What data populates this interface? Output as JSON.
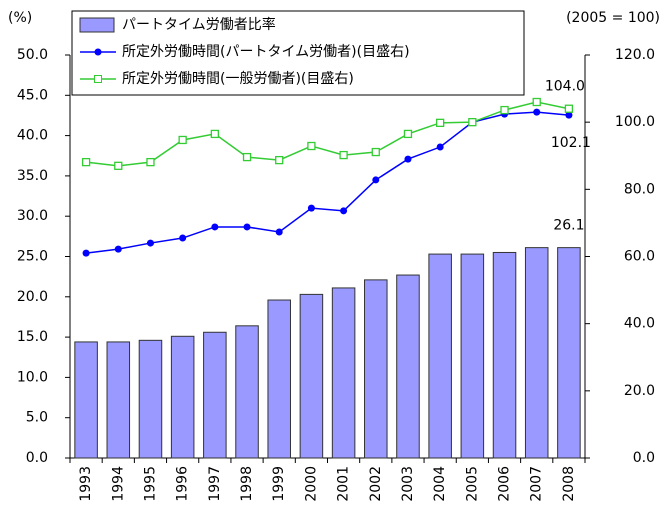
{
  "chart_data": {
    "type": "bar-line",
    "y_label": "(%)",
    "y2_label": "(2005 = 100)",
    "categories": [
      "1993",
      "1994",
      "1995",
      "1996",
      "1997",
      "1998",
      "1999",
      "2000",
      "2001",
      "2002",
      "2003",
      "2004",
      "2005",
      "2006",
      "2007",
      "2008"
    ],
    "series": [
      {
        "name": "パートタイム労働者比率",
        "type": "bar",
        "color": "#9999ff",
        "values": [
          14.4,
          14.4,
          14.6,
          15.1,
          15.6,
          16.4,
          19.6,
          20.3,
          21.1,
          22.1,
          22.7,
          25.3,
          25.3,
          25.5,
          26.1,
          26.1
        ],
        "value_labels": [
          null,
          null,
          null,
          null,
          null,
          null,
          null,
          null,
          null,
          null,
          null,
          null,
          null,
          null,
          null,
          "26.1"
        ]
      },
      {
        "name": "所定外労働時間(パートタイム労働者)(目盛右)",
        "type": "line",
        "marker": "circle",
        "axis": "y2",
        "color": "#0000ff",
        "values": [
          61.0,
          62.2,
          64.0,
          65.5,
          68.8,
          68.8,
          67.3,
          74.4,
          73.6,
          82.8,
          89.0,
          92.6,
          100.0,
          102.4,
          103.0,
          102.1
        ],
        "value_labels": [
          null,
          null,
          null,
          null,
          null,
          null,
          null,
          null,
          null,
          null,
          null,
          null,
          null,
          null,
          null,
          "102.1"
        ]
      },
      {
        "name": "所定外労働時間(一般労働者)(目盛右)",
        "type": "line",
        "marker": "square",
        "axis": "y2",
        "color": "#33cc33",
        "values": [
          88.1,
          87.0,
          88.1,
          94.7,
          96.5,
          89.6,
          88.7,
          92.9,
          90.2,
          91.1,
          96.5,
          99.8,
          100.0,
          103.6,
          106.0,
          104.0
        ],
        "value_labels": [
          null,
          null,
          null,
          null,
          null,
          null,
          null,
          null,
          null,
          null,
          null,
          null,
          null,
          null,
          null,
          "104.0"
        ]
      }
    ],
    "ylim": [
      0,
      50
    ],
    "yticks": [
      {
        "value": 0,
        "label": "0.0"
      },
      {
        "value": 5,
        "label": "5.0"
      },
      {
        "value": 10,
        "label": "10.0"
      },
      {
        "value": 15,
        "label": "15.0"
      },
      {
        "value": 20,
        "label": "20.0"
      },
      {
        "value": 25,
        "label": "25.0"
      },
      {
        "value": 30,
        "label": "30.0"
      },
      {
        "value": 35,
        "label": "35.0"
      },
      {
        "value": 40,
        "label": "40.0"
      },
      {
        "value": 45,
        "label": "45.0"
      },
      {
        "value": 50,
        "label": "50.0"
      }
    ],
    "y2lim": [
      0,
      120
    ],
    "y2ticks": [
      {
        "value": 0,
        "label": "0.0"
      },
      {
        "value": 20,
        "label": "20.0"
      },
      {
        "value": 40,
        "label": "40.0"
      },
      {
        "value": 60,
        "label": "60.0"
      },
      {
        "value": 80,
        "label": "80.0"
      },
      {
        "value": 100,
        "label": "100.0"
      },
      {
        "value": 120,
        "label": "120.0"
      }
    ]
  }
}
